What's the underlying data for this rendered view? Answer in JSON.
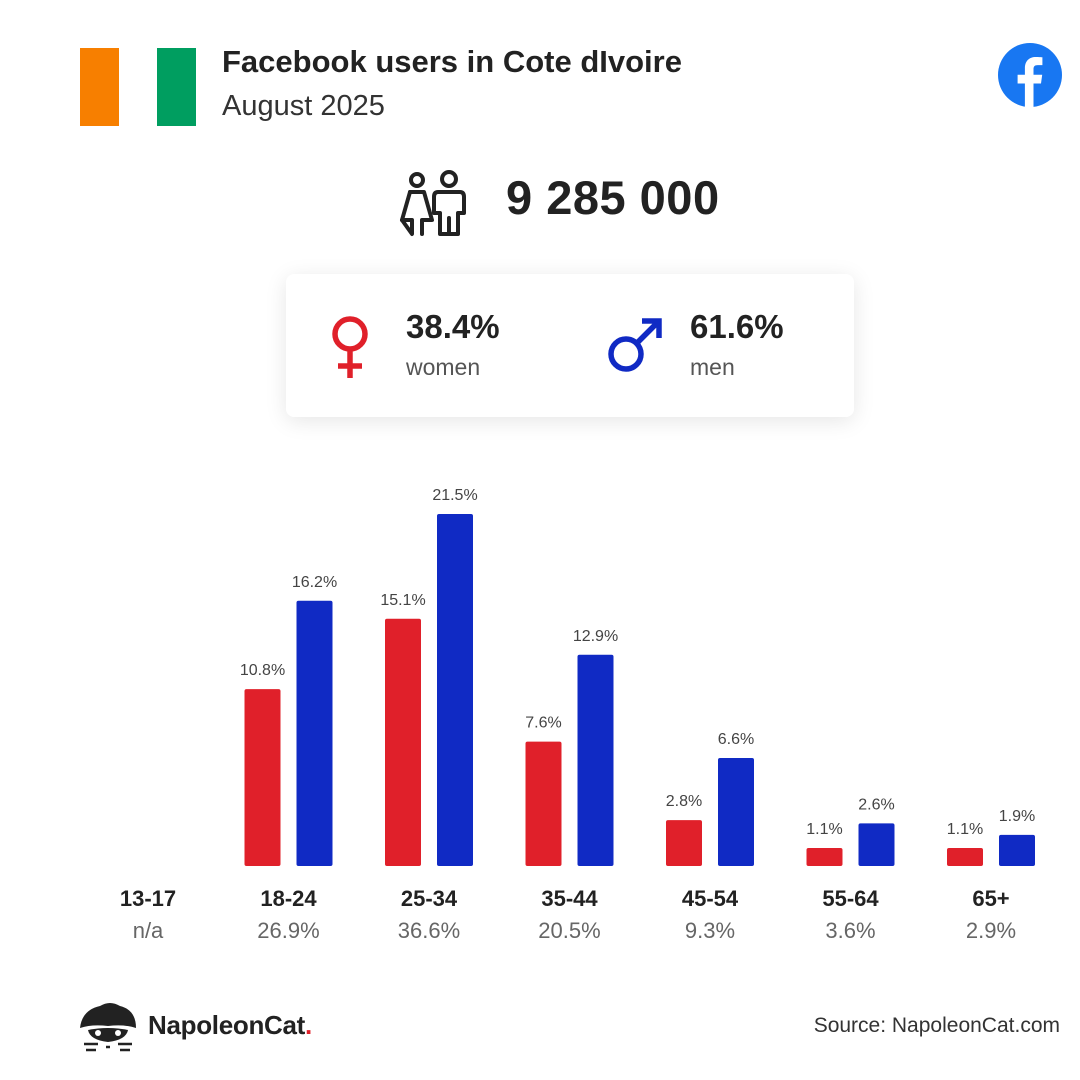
{
  "header": {
    "title": "Facebook users in Cote dIvoire",
    "subtitle": "August 2025"
  },
  "flag": {
    "colors": [
      "#f77f00",
      "#ffffff",
      "#009e60"
    ]
  },
  "icons": {
    "brand": "facebook-icon",
    "people": "people-icon",
    "female": "female-symbol-icon",
    "male": "male-symbol-icon",
    "mascot": "napoleoncat-mascot-icon"
  },
  "total_users": "9 285 000",
  "gender": {
    "women": {
      "pct": "38.4%",
      "label": "women",
      "color": "#e0202a"
    },
    "men": {
      "pct": "61.6%",
      "label": "men",
      "color": "#102ac4"
    }
  },
  "chart_data": {
    "type": "bar",
    "categories": [
      "13-17",
      "18-24",
      "25-34",
      "35-44",
      "45-54",
      "55-64",
      "65+"
    ],
    "group_totals": [
      "n/a",
      "26.9%",
      "36.6%",
      "20.5%",
      "9.3%",
      "3.6%",
      "2.9%"
    ],
    "series": [
      {
        "name": "women",
        "color": "#e0202a",
        "values": [
          null,
          10.8,
          15.1,
          7.6,
          2.8,
          1.1,
          1.1
        ]
      },
      {
        "name": "men",
        "color": "#102ac4",
        "values": [
          null,
          16.2,
          21.5,
          12.9,
          6.6,
          2.6,
          1.9
        ]
      }
    ],
    "value_suffix": "%",
    "ylim": [
      0,
      21.5
    ],
    "grid": false,
    "title": "",
    "xlabel": "",
    "ylabel": ""
  },
  "footer": {
    "brand_name": "NapoleonCat",
    "brand_dot": ".",
    "source": "Source: NapoleonCat.com"
  }
}
